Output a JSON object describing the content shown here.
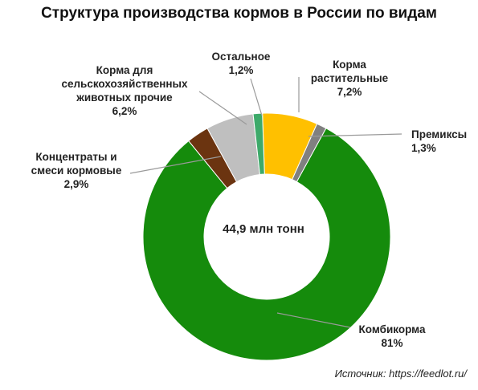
{
  "chart_data": {
    "type": "pie",
    "title": "Структура производства кормов в России по видам",
    "center_label": "44,9 млн тонн",
    "slices": [
      {
        "name": "Корма растительные",
        "label_lines": [
          "Корма",
          "растительные"
        ],
        "value_label": "7,2%",
        "value": 7.2,
        "color": "#FFC000"
      },
      {
        "name": "Премиксы",
        "label_lines": [
          "Премиксы"
        ],
        "value_label": "1,3%",
        "value": 1.3,
        "color": "#808080"
      },
      {
        "name": "Комбикорма",
        "label_lines": [
          "Комбикорма"
        ],
        "value_label": "81%",
        "value": 81,
        "color": "#158B0C"
      },
      {
        "name": "Концентраты и смеси кормовые",
        "label_lines": [
          "Концентраты и",
          "смеси кормовые"
        ],
        "value_label": "2,9%",
        "value": 2.9,
        "color": "#6B3410"
      },
      {
        "name": "Корма для сельскохозяйственных животных прочие",
        "label_lines": [
          "Корма для",
          "сельскохозяйственных",
          "животных прочие"
        ],
        "value_label": "6,2%",
        "value": 6.2,
        "color": "#BFBFBF"
      },
      {
        "name": "Остальное",
        "label_lines": [
          "Остальное"
        ],
        "value_label": "1,2%",
        "value": 1.2,
        "color": "#3DAA6A"
      }
    ],
    "legend": "none"
  },
  "source": "Источник: https://feedlot.ru/"
}
